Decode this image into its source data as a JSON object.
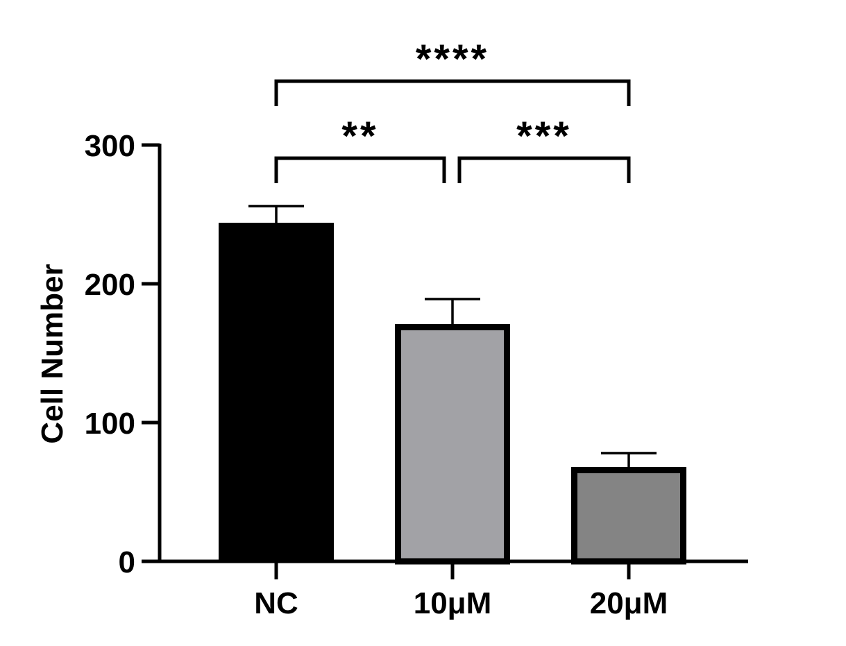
{
  "chart_data": {
    "type": "bar",
    "categories": [
      "NC",
      "10μM",
      "20μM"
    ],
    "values": [
      244,
      171,
      68
    ],
    "error_upper": [
      256,
      189,
      78
    ],
    "bar_colors": [
      "#000000",
      "#a2a2a6",
      "#848484"
    ],
    "edge_color": "#000000",
    "title": "",
    "xlabel": "",
    "ylabel": "Cell Number",
    "ylim": [
      0,
      300
    ],
    "yticks": [
      "0",
      "100",
      "200",
      "300"
    ],
    "ytick_values": [
      0,
      100,
      200,
      300
    ],
    "grid": false,
    "significance": [
      {
        "from": 0,
        "to": 1,
        "label": "**",
        "level": "low"
      },
      {
        "from": 1,
        "to": 2,
        "label": "***",
        "level": "low"
      },
      {
        "from": 0,
        "to": 2,
        "label": "****",
        "level": "high"
      }
    ]
  }
}
